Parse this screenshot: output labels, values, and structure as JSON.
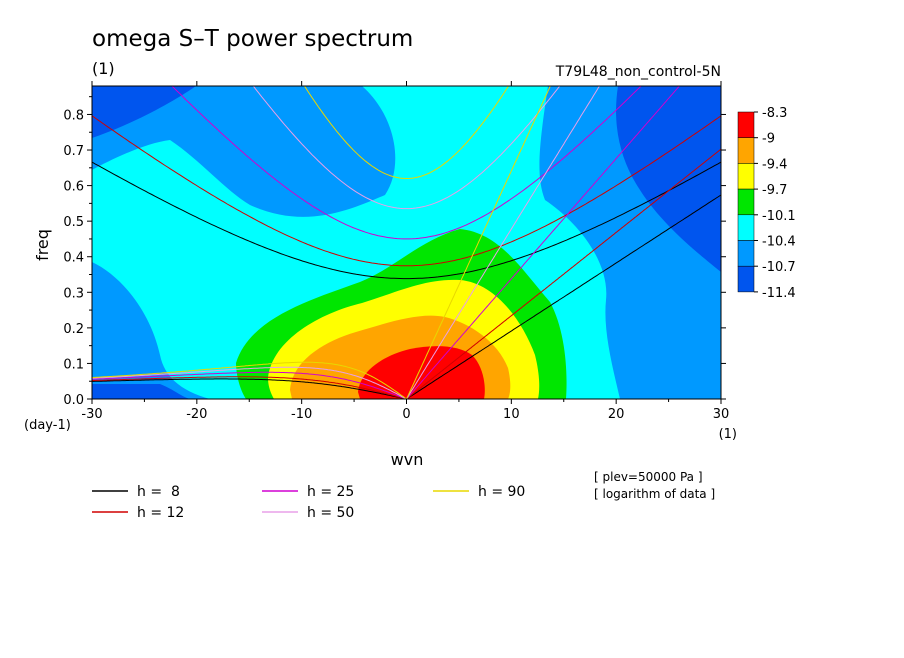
{
  "title": "omega S–T power spectrum",
  "subtitle": "(1)",
  "run_label": "T79L48_non_control-5N",
  "x_unit_label": "(1)",
  "y_unit_label": "(day-1)",
  "notes": [
    "[ plev=50000 Pa ]",
    "[ logarithm of data ]"
  ],
  "chart_data": {
    "type": "heatmap",
    "title": "omega S–T power spectrum",
    "xlabel": "wvn",
    "ylabel": "freq",
    "xlim": [
      -30,
      30
    ],
    "ylim": [
      0,
      0.88
    ],
    "xticks": [
      -30,
      -20,
      -10,
      0,
      10,
      20,
      30
    ],
    "yticks": [
      0.0,
      0.1,
      0.2,
      0.3,
      0.4,
      0.5,
      0.6,
      0.7,
      0.8
    ],
    "colorbar": {
      "levels": [
        "-8.3",
        "-9",
        "-9.4",
        "-9.7",
        "-10.1",
        "-10.4",
        "-10.7",
        "-11.4"
      ],
      "colors": [
        "#ff0000",
        "#ffa500",
        "#ffff00",
        "#00e600",
        "#00ffff",
        "#0099ff",
        "#0055ee"
      ]
    },
    "shading_colors": {
      "bg": "#0099ff",
      "dark": "#0055ee",
      "cyan": "#00ffff",
      "green": "#00e600",
      "yellow": "#ffff00",
      "orange": "#ffa500",
      "red": "#ff0000"
    },
    "dispersion_series": [
      {
        "name": "h =  8",
        "h": 8,
        "color": "#000000"
      },
      {
        "name": "h = 12",
        "h": 12,
        "color": "#d00000"
      },
      {
        "name": "h = 25",
        "h": 25,
        "color": "#d000d0"
      },
      {
        "name": "h = 50",
        "h": 50,
        "color": "#e8a0e8"
      },
      {
        "name": "h = 90",
        "h": 90,
        "color": "#e8d800"
      }
    ]
  }
}
